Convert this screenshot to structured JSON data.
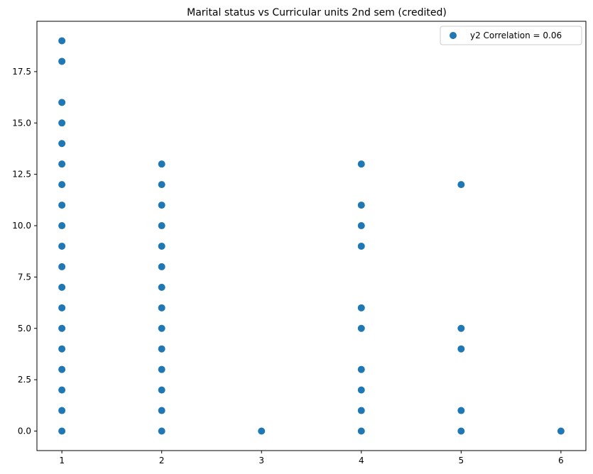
{
  "chart_data": {
    "type": "scatter",
    "title": "Marital status vs Curricular units 2nd sem (credited)",
    "xlabel": "",
    "ylabel": "",
    "xlim": [
      0.75,
      6.25
    ],
    "ylim": [
      -0.95,
      19.95
    ],
    "x_ticks": [
      1,
      2,
      3,
      4,
      5,
      6
    ],
    "y_ticks": [
      0.0,
      2.5,
      5.0,
      7.5,
      10.0,
      12.5,
      15.0,
      17.5
    ],
    "y_tick_labels": [
      "0.0",
      "2.5",
      "5.0",
      "7.5",
      "10.0",
      "12.5",
      "15.0",
      "17.5"
    ],
    "grid": false,
    "legend_position": "top-right",
    "color": "#1f77b4",
    "series": [
      {
        "name": "y2 Correlation = 0.06",
        "points": [
          [
            1,
            0
          ],
          [
            1,
            1
          ],
          [
            1,
            2
          ],
          [
            1,
            3
          ],
          [
            1,
            4
          ],
          [
            1,
            5
          ],
          [
            1,
            6
          ],
          [
            1,
            7
          ],
          [
            1,
            8
          ],
          [
            1,
            9
          ],
          [
            1,
            10
          ],
          [
            1,
            11
          ],
          [
            1,
            12
          ],
          [
            1,
            13
          ],
          [
            1,
            14
          ],
          [
            1,
            15
          ],
          [
            1,
            16
          ],
          [
            1,
            18
          ],
          [
            1,
            19
          ],
          [
            2,
            0
          ],
          [
            2,
            1
          ],
          [
            2,
            2
          ],
          [
            2,
            3
          ],
          [
            2,
            4
          ],
          [
            2,
            5
          ],
          [
            2,
            6
          ],
          [
            2,
            7
          ],
          [
            2,
            8
          ],
          [
            2,
            9
          ],
          [
            2,
            10
          ],
          [
            2,
            11
          ],
          [
            2,
            12
          ],
          [
            2,
            13
          ],
          [
            3,
            0
          ],
          [
            4,
            0
          ],
          [
            4,
            1
          ],
          [
            4,
            2
          ],
          [
            4,
            3
          ],
          [
            4,
            5
          ],
          [
            4,
            6
          ],
          [
            4,
            9
          ],
          [
            4,
            10
          ],
          [
            4,
            11
          ],
          [
            4,
            13
          ],
          [
            5,
            0
          ],
          [
            5,
            1
          ],
          [
            5,
            4
          ],
          [
            5,
            5
          ],
          [
            5,
            12
          ],
          [
            6,
            0
          ]
        ]
      }
    ]
  }
}
